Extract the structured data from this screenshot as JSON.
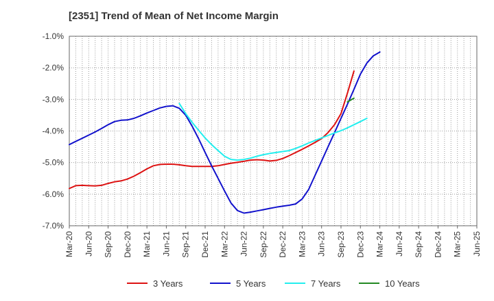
{
  "chart_data": {
    "type": "line",
    "title": "[2351]  Trend of Mean of Net Income Margin",
    "xlabel": "",
    "ylabel": "",
    "x_ticks": [
      "Mar-20",
      "Jun-20",
      "Sep-20",
      "Dec-20",
      "Mar-21",
      "Jun-21",
      "Sep-21",
      "Dec-21",
      "Mar-22",
      "Jun-22",
      "Sep-22",
      "Dec-22",
      "Mar-23",
      "Jun-23",
      "Sep-23",
      "Dec-23",
      "Mar-24",
      "Jun-24",
      "Sep-24",
      "Dec-24",
      "Mar-25",
      "Jun-25"
    ],
    "y_ticks": [
      "-1.0%",
      "-2.0%",
      "-3.0%",
      "-4.0%",
      "-5.0%",
      "-6.0%",
      "-7.0%"
    ],
    "y_tick_values": [
      -1.0,
      -2.0,
      -3.0,
      -4.0,
      -5.0,
      -6.0,
      -7.0
    ],
    "ylim": [
      -7.0,
      -1.0
    ],
    "grid": true,
    "legend_position": "bottom",
    "series": [
      {
        "name": "3 Years",
        "color": "#dd1111",
        "start_index": 0,
        "values": [
          -5.82,
          -5.73,
          -5.72,
          -5.73,
          -5.74,
          -5.72,
          -5.66,
          -5.61,
          -5.58,
          -5.52,
          -5.43,
          -5.32,
          -5.2,
          -5.1,
          -5.06,
          -5.05,
          -5.05,
          -5.07,
          -5.1,
          -5.12,
          -5.12,
          -5.12,
          -5.12,
          -5.1,
          -5.06,
          -5.02,
          -4.99,
          -4.96,
          -4.92,
          -4.91,
          -4.92,
          -4.95,
          -4.93,
          -4.87,
          -4.78,
          -4.68,
          -4.58,
          -4.47,
          -4.36,
          -4.24,
          -4.05,
          -3.8,
          -3.45,
          -2.8,
          -2.1
        ]
      },
      {
        "name": "5 Years",
        "color": "#1111cc",
        "start_index": 0,
        "values": [
          -4.43,
          -4.33,
          -4.23,
          -4.13,
          -4.03,
          -3.92,
          -3.8,
          -3.7,
          -3.66,
          -3.65,
          -3.6,
          -3.52,
          -3.43,
          -3.35,
          -3.27,
          -3.22,
          -3.2,
          -3.28,
          -3.5,
          -3.85,
          -4.25,
          -4.68,
          -5.1,
          -5.5,
          -5.9,
          -6.28,
          -6.52,
          -6.6,
          -6.57,
          -6.53,
          -6.49,
          -6.45,
          -6.41,
          -6.38,
          -6.35,
          -6.31,
          -6.15,
          -5.85,
          -5.4,
          -4.95,
          -4.5,
          -4.05,
          -3.6,
          -3.15,
          -2.68,
          -2.2,
          -1.85,
          -1.62,
          -1.5
        ]
      },
      {
        "name": "7 Years",
        "color": "#22eeee",
        "start_index": 17,
        "values": [
          -3.13,
          -3.45,
          -3.73,
          -3.98,
          -4.22,
          -4.43,
          -4.62,
          -4.8,
          -4.9,
          -4.92,
          -4.9,
          -4.86,
          -4.8,
          -4.75,
          -4.71,
          -4.68,
          -4.65,
          -4.62,
          -4.55,
          -4.47,
          -4.38,
          -4.3,
          -4.22,
          -4.14,
          -4.06,
          -3.99,
          -3.9,
          -3.8,
          -3.7,
          -3.6
        ]
      },
      {
        "name": "10 Years",
        "color": "#228822",
        "start_index": 43,
        "values": [
          -3.08,
          -2.96
        ]
      }
    ]
  }
}
